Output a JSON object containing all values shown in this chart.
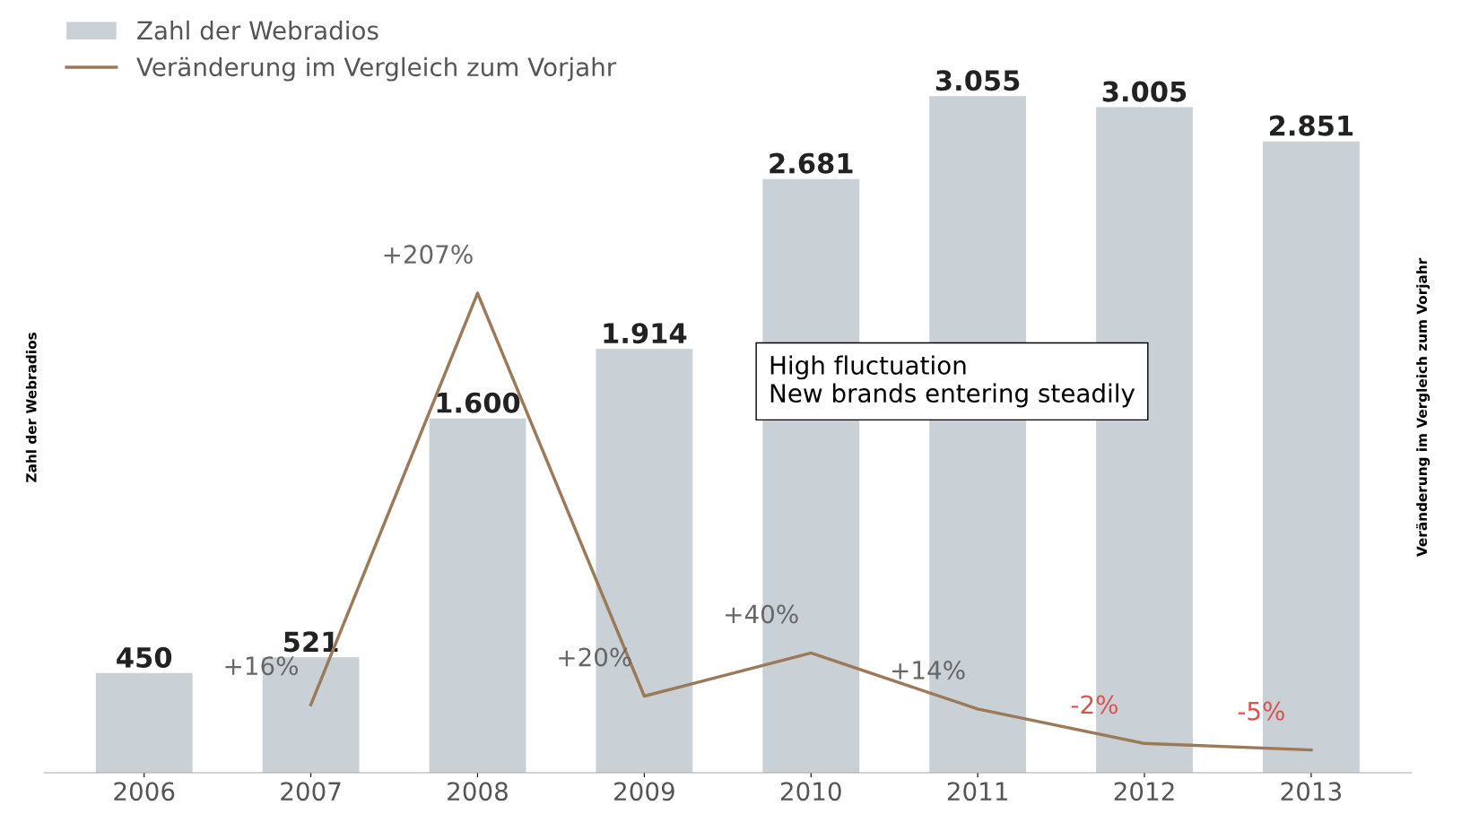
{
  "chart_data": {
    "type": "bar",
    "categories": [
      "2006",
      "2007",
      "2008",
      "2009",
      "2010",
      "2011",
      "2012",
      "2013"
    ],
    "ylabel": "Zahl der Webradios",
    "y2label": "Veränderung im Vergleich zum Vorjahr",
    "tick_labels": "x",
    "legend": "top left",
    "grid": false,
    "annotations": [
      "High fluctuation\nNew brands entering steadily"
    ],
    "series": [
      {
        "name": "Zahl der Webradios",
        "color": "#c9d0d6",
        "values": [
          450,
          521,
          1600,
          1914,
          2681,
          3055,
          3005,
          2851
        ],
        "value_labels": [
          "450",
          "521",
          "1.600",
          "1.914",
          "2.681",
          "3.055",
          "3.005",
          "2.851"
        ]
      },
      {
        "name": "Veränderung im Vergleich zum Vorjahr",
        "type": "line",
        "axis": "y2",
        "color": "#9b7a5a",
        "values": [
          null,
          16,
          207,
          20,
          40,
          14,
          -2,
          -5
        ],
        "value_labels": [
          null,
          "+16%",
          "+207%",
          "+20%",
          "+40%",
          "+14%",
          "-2%",
          "-5%"
        ]
      }
    ]
  }
}
